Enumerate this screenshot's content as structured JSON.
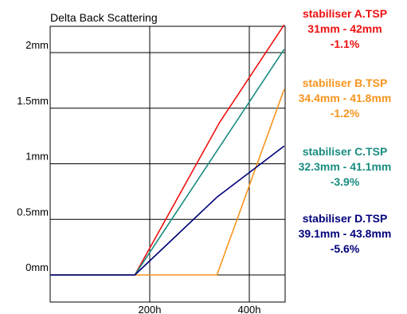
{
  "chart_data": {
    "type": "line",
    "title": "Delta Back Scattering",
    "xlabel": "",
    "ylabel": "",
    "xlim": [
      0,
      470
    ],
    "ylim": [
      0,
      2.35
    ],
    "x_ticks": [
      {
        "value": 200,
        "label": "200h"
      },
      {
        "value": 400,
        "label": "400h"
      }
    ],
    "y_ticks": [
      {
        "value": 0,
        "label": "0mm"
      },
      {
        "value": 0.5,
        "label": "0.5mm"
      },
      {
        "value": 1,
        "label": "1mm"
      },
      {
        "value": 1.5,
        "label": "1.5mm"
      },
      {
        "value": 2,
        "label": "2mm"
      }
    ],
    "grid": true,
    "legend_position": "right",
    "series": [
      {
        "name": "stabiliser A.TSP",
        "range": "31mm - 42mm",
        "change": "-1.1%",
        "color": "#ee1111",
        "points": [
          [
            0,
            0
          ],
          [
            170,
            0
          ],
          [
            340,
            1.37
          ],
          [
            470,
            2.25
          ]
        ]
      },
      {
        "name": "stabiliser B.TSP",
        "range": "34.4mm - 41.8mm",
        "change": "-1.2%",
        "color": "#f7941d",
        "points": [
          [
            0,
            0
          ],
          [
            170,
            0
          ],
          [
            335,
            0
          ],
          [
            470,
            1.67
          ]
        ]
      },
      {
        "name": "stabiliser C.TSP",
        "range": "32.3mm - 41.1mm",
        "change": "-3.9%",
        "color": "#1a8c80",
        "points": [
          [
            0,
            0
          ],
          [
            170,
            0
          ],
          [
            470,
            2.03
          ]
        ]
      },
      {
        "name": "stabiliser D.TSP",
        "range": "39.1mm - 43.8mm",
        "change": "-5.6%",
        "color": "#00007a",
        "points": [
          [
            0,
            0
          ],
          [
            170,
            0
          ],
          [
            335,
            0.7
          ],
          [
            470,
            1.16
          ]
        ]
      }
    ]
  }
}
